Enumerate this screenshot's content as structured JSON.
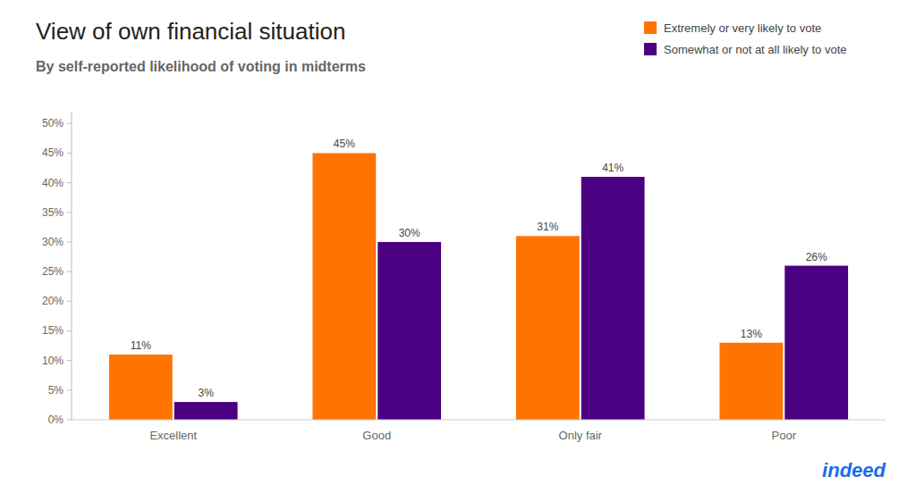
{
  "chart_data": {
    "type": "bar",
    "title": "View of own financial situation",
    "subtitle": "By self-reported likelihood of voting in midterms",
    "categories": [
      "Excellent",
      "Good",
      "Only fair",
      "Poor"
    ],
    "series": [
      {
        "name": "Extremely or very likely to vote",
        "color": "#FF7400",
        "values": [
          11,
          45,
          31,
          13
        ],
        "value_labels": [
          "11%",
          "45%",
          "31%",
          "13%"
        ]
      },
      {
        "name": "Somewhat or not at all likely to vote",
        "color": "#4B0082",
        "values": [
          3,
          30,
          41,
          26
        ],
        "value_labels": [
          "3%",
          "30%",
          "41%",
          "26%"
        ]
      }
    ],
    "ylim": [
      0,
      52
    ],
    "yticks": [
      {
        "value": 0,
        "label": "0%"
      },
      {
        "value": 5,
        "label": "5%"
      },
      {
        "value": 10,
        "label": "10%"
      },
      {
        "value": 15,
        "label": "15%"
      },
      {
        "value": 20,
        "label": "20%"
      },
      {
        "value": 25,
        "label": "25%"
      },
      {
        "value": 30,
        "label": "30%"
      },
      {
        "value": 35,
        "label": "35%"
      },
      {
        "value": 40,
        "label": "40%"
      },
      {
        "value": 45,
        "label": "45%"
      },
      {
        "value": 50,
        "label": "50%"
      }
    ],
    "grid": false,
    "legend": "upper right",
    "data_labels": true,
    "annotations": [
      {
        "text": "indeed",
        "color": "#1A6CE8"
      }
    ]
  }
}
